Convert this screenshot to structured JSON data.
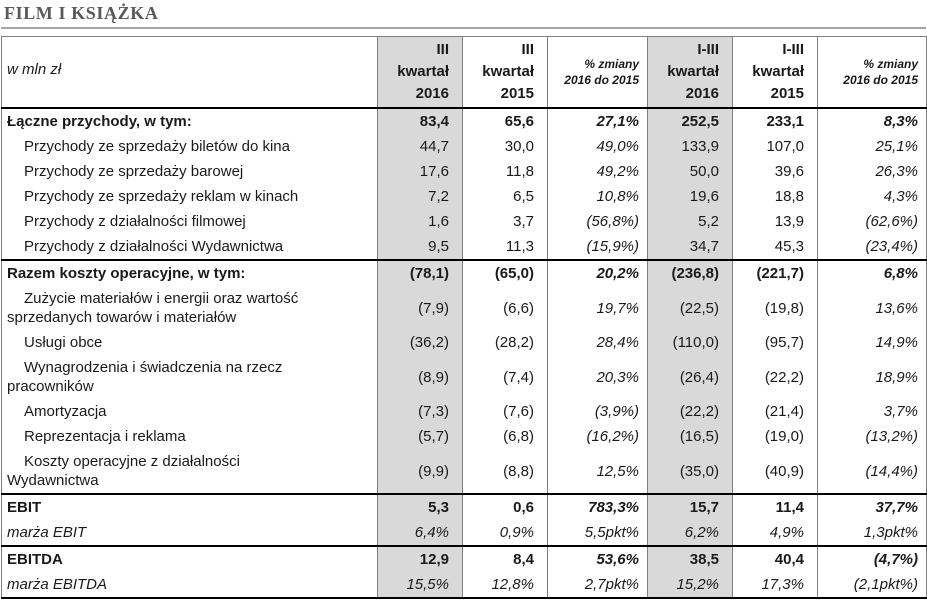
{
  "title": "FILM I KSIĄŻKA",
  "table": {
    "unit_label": "w mln zł",
    "columns": [
      {
        "text": "III\nkwartał\n2016",
        "shaded": true
      },
      {
        "text": "III\nkwartał\n2015",
        "shaded": false
      },
      {
        "text": "% zmiany\n2016 do 2015",
        "shaded": false
      },
      {
        "text": "I-III\nkwartał\n2016",
        "shaded": true
      },
      {
        "text": "I-III\nkwartał\n2015",
        "shaded": false
      },
      {
        "text": "% zmiany\n2016 do 2015",
        "shaded": false
      }
    ],
    "shading_color": "#d9d9d9",
    "rows": [
      {
        "label": "Łączne przychody, w tym:",
        "style": "total",
        "border_top": false,
        "values": [
          "83,4",
          "65,6",
          "27,1%",
          "252,5",
          "233,1",
          "8,3%"
        ]
      },
      {
        "label": "Przychody ze sprzedaży biletów do kina",
        "style": "item",
        "border_top": false,
        "values": [
          "44,7",
          "30,0",
          "49,0%",
          "133,9",
          "107,0",
          "25,1%"
        ]
      },
      {
        "label": "Przychody ze sprzedaży barowej",
        "style": "item",
        "border_top": false,
        "values": [
          "17,6",
          "11,8",
          "49,2%",
          "50,0",
          "39,6",
          "26,3%"
        ]
      },
      {
        "label": "Przychody ze sprzedaży reklam w kinach",
        "style": "item",
        "border_top": false,
        "values": [
          "7,2",
          "6,5",
          "10,8%",
          "19,6",
          "18,8",
          "4,3%"
        ]
      },
      {
        "label": "Przychody z działalności filmowej",
        "style": "item",
        "border_top": false,
        "values": [
          "1,6",
          "3,7",
          "(56,8%)",
          "5,2",
          "13,9",
          "(62,6%)"
        ]
      },
      {
        "label": "Przychody z działalności Wydawnictwa",
        "style": "item",
        "border_top": false,
        "values": [
          "9,5",
          "11,3",
          "(15,9%)",
          "34,7",
          "45,3",
          "(23,4%)"
        ]
      },
      {
        "label": "Razem koszty operacyjne, w tym:",
        "style": "total",
        "border_top": true,
        "values": [
          "(78,1)",
          "(65,0)",
          "20,2%",
          "(236,8)",
          "(221,7)",
          "6,8%"
        ]
      },
      {
        "label": "Zużycie materiałów i energii oraz wartość\nsprzedanych towarów i materiałów",
        "style": "item",
        "border_top": false,
        "values": [
          "(7,9)",
          "(6,6)",
          "19,7%",
          "(22,5)",
          "(19,8)",
          "13,6%"
        ]
      },
      {
        "label": "Usługi obce",
        "style": "item",
        "border_top": false,
        "values": [
          "(36,2)",
          "(28,2)",
          "28,4%",
          "(110,0)",
          "(95,7)",
          "14,9%"
        ]
      },
      {
        "label": "Wynagrodzenia i świadczenia na rzecz\npracowników",
        "style": "item",
        "border_top": false,
        "values": [
          "(8,9)",
          "(7,4)",
          "20,3%",
          "(26,4)",
          "(22,2)",
          "18,9%"
        ]
      },
      {
        "label": "Amortyzacja",
        "style": "item",
        "border_top": false,
        "values": [
          "(7,3)",
          "(7,6)",
          "(3,9%)",
          "(22,2)",
          "(21,4)",
          "3,7%"
        ]
      },
      {
        "label": "Reprezentacja i reklama",
        "style": "item",
        "border_top": false,
        "values": [
          "(5,7)",
          "(6,8)",
          "(16,2%)",
          "(16,5)",
          "(19,0)",
          "(13,2%)"
        ]
      },
      {
        "label": "Koszty operacyjne z działalności\nWydawnictwa",
        "style": "item",
        "border_top": false,
        "values": [
          "(9,9)",
          "(8,8)",
          "12,5%",
          "(35,0)",
          "(40,9)",
          "(14,4%)"
        ]
      },
      {
        "label": "EBIT",
        "style": "total",
        "border_top": true,
        "values": [
          "5,3",
          "0,6",
          "783,3%",
          "15,7",
          "11,4",
          "37,7%"
        ]
      },
      {
        "label": "marża EBIT",
        "style": "margin",
        "border_top": false,
        "values": [
          "6,4%",
          "0,9%",
          "5,5pkt%",
          "6,2%",
          "4,9%",
          "1,3pkt%"
        ]
      },
      {
        "label": "EBITDA",
        "style": "total",
        "border_top": true,
        "values": [
          "12,9",
          "8,4",
          "53,6%",
          "38,5",
          "40,4",
          "(4,7%)"
        ]
      },
      {
        "label": "marża EBITDA",
        "style": "margin",
        "border_top": false,
        "values": [
          "15,5%",
          "12,8%",
          "2,7pkt%",
          "15,2%",
          "17,3%",
          "(2,1pkt%)"
        ]
      }
    ]
  }
}
